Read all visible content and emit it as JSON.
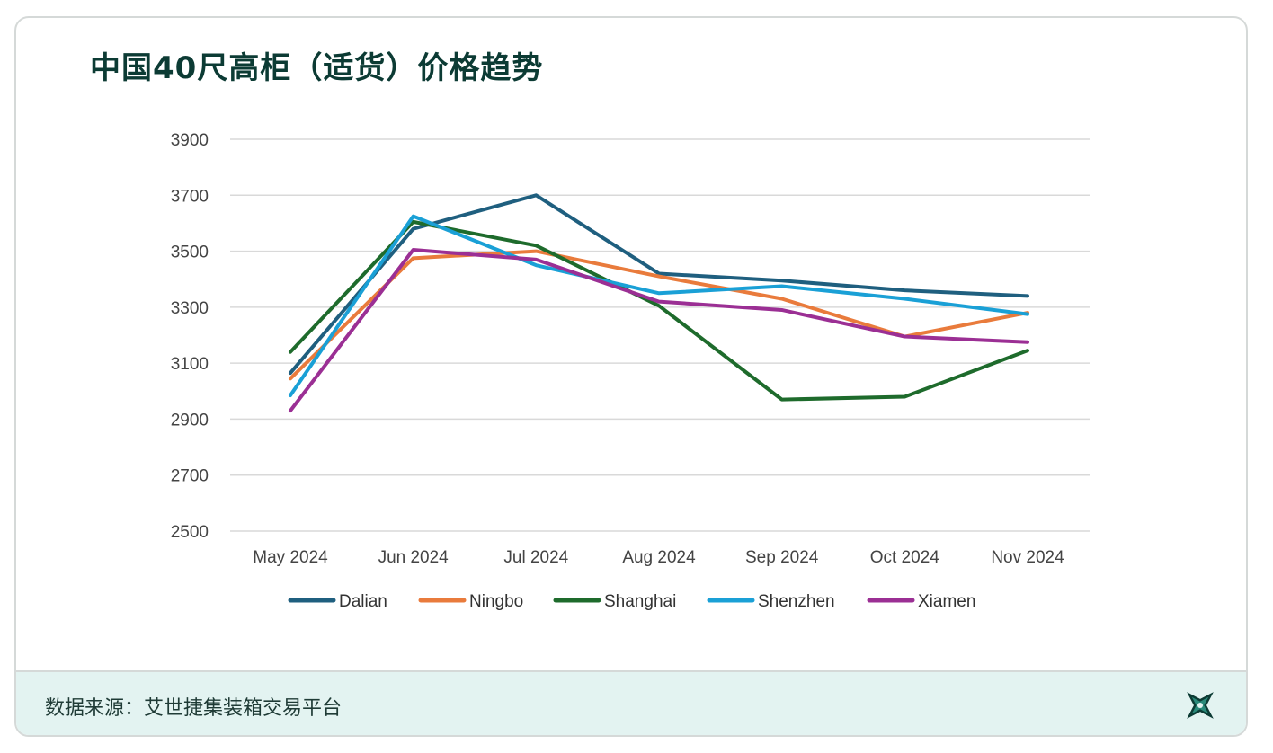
{
  "title": "中国40尺高柜（适货）价格趋势",
  "footer": {
    "source": "数据来源：艾世捷集装箱交易平台"
  },
  "icons": {
    "logo": "x-star-logo-icon"
  },
  "chart_data": {
    "type": "line",
    "categories": [
      "May 2024",
      "Jun 2024",
      "Jul 2024",
      "Aug 2024",
      "Sep 2024",
      "Oct 2024",
      "Nov 2024"
    ],
    "yticks": [
      2500,
      2700,
      2900,
      3100,
      3300,
      3500,
      3700,
      3900
    ],
    "ylim": [
      2500,
      3900
    ],
    "grid": true,
    "legend_position": "bottom",
    "series": [
      {
        "name": "Dalian",
        "color": "#1f5f7f",
        "values": [
          3065,
          3580,
          3700,
          3420,
          3395,
          3360,
          3340
        ]
      },
      {
        "name": "Ningbo",
        "color": "#e97b3c",
        "values": [
          3045,
          3475,
          3500,
          3410,
          3330,
          3195,
          3280
        ]
      },
      {
        "name": "Shanghai",
        "color": "#1e6b2c",
        "values": [
          3140,
          3605,
          3520,
          3305,
          2970,
          2980,
          3145
        ]
      },
      {
        "name": "Shenzhen",
        "color": "#1aa0d6",
        "values": [
          2985,
          3625,
          3450,
          3350,
          3375,
          3330,
          3275
        ]
      },
      {
        "name": "Xiamen",
        "color": "#9b2f94",
        "values": [
          2930,
          3505,
          3470,
          3320,
          3290,
          3195,
          3175
        ]
      }
    ]
  }
}
